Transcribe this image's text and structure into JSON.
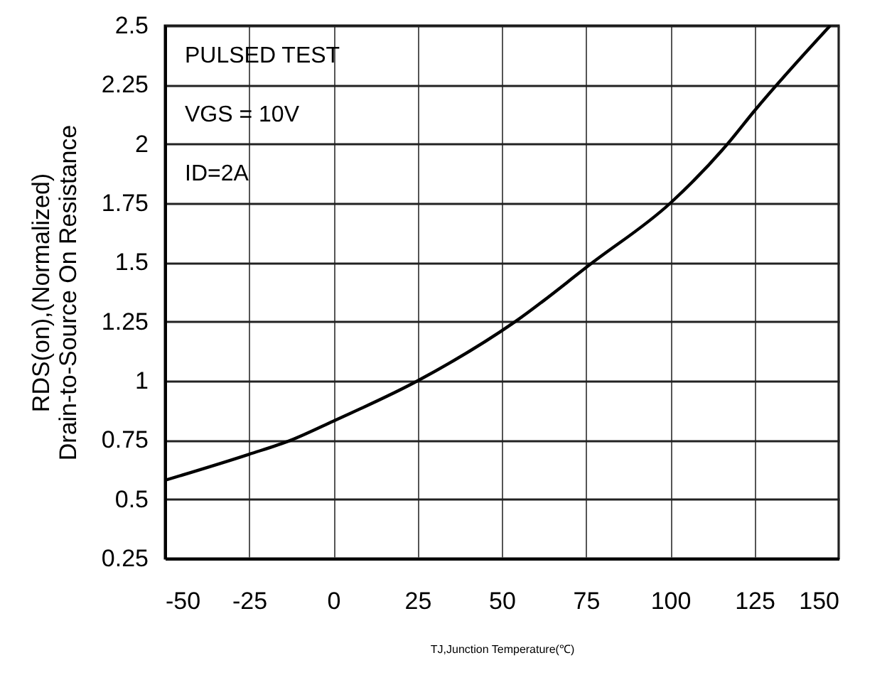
{
  "chart_data": {
    "type": "line",
    "xlabel": "TJ,Junction Temperature(℃)",
    "ylabel": [
      "RDS(on),(Normalized)",
      "Drain-to-Source  On Resistance"
    ],
    "annotations": [
      "PULSED TEST",
      "VGS = 10V",
      "ID=2A"
    ],
    "x": [
      -50,
      -25,
      -12.5,
      0,
      25,
      54,
      77,
      100,
      117,
      125,
      147.5
    ],
    "series": [
      {
        "color": "#000000",
        "values": [
          0.58,
          0.69,
          0.75,
          0.83,
          1.0,
          1.25,
          1.5,
          1.75,
          2.0,
          2.14,
          2.5
        ]
      }
    ],
    "xlim": [
      -50,
      150
    ],
    "xticks": [
      -50,
      -25,
      0,
      25,
      50,
      75,
      100,
      125,
      150
    ],
    "ylim": [
      0.25,
      2.5
    ],
    "yticks": [
      0.25,
      0.5,
      0.75,
      1,
      1.25,
      1.5,
      1.75,
      2,
      2.25,
      2.5
    ],
    "grid": true,
    "marker": "none",
    "line_style": "solid"
  }
}
